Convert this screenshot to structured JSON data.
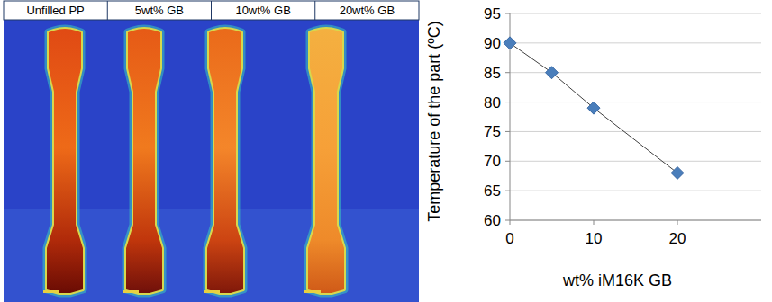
{
  "image_panel": {
    "labels": [
      "Unfilled PP",
      "5wt% GB",
      "10wt% GB",
      "20wt% GB"
    ]
  },
  "chart_data": {
    "type": "scatter",
    "x": [
      0,
      5,
      10,
      20
    ],
    "values": [
      90,
      85,
      79,
      68
    ],
    "color": "#4a7ebb",
    "marker": "diamond",
    "line_style": "solid",
    "xlabel": "wt% iM16K GB",
    "ylabel": "Temperature of the part (ºC)",
    "xlim": [
      0,
      30
    ],
    "xticks": [
      0,
      10,
      20
    ],
    "ylim": [
      60,
      95
    ],
    "yticks": [
      60,
      65,
      70,
      75,
      80,
      85,
      90,
      95
    ],
    "grid": true
  }
}
